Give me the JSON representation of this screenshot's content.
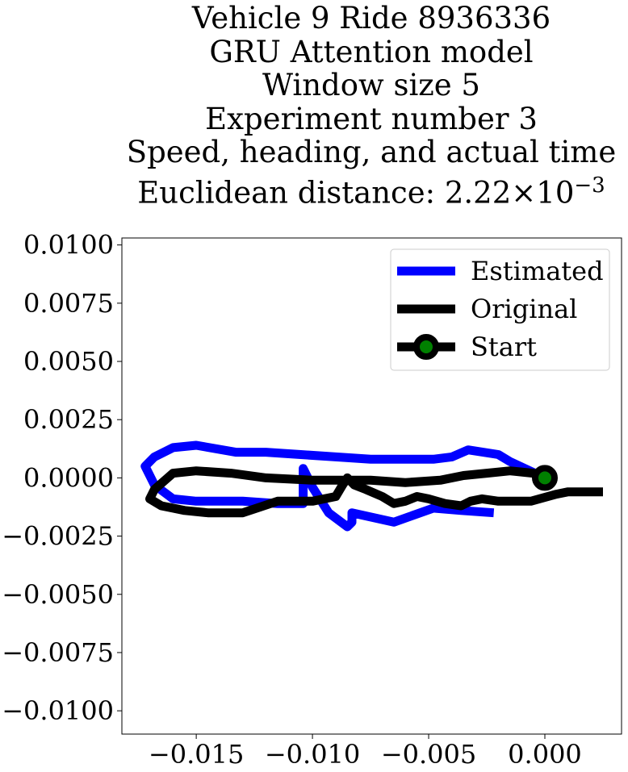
{
  "chart_data": {
    "type": "line",
    "title_lines": [
      "Vehicle 9 Ride 8936336",
      "GRU Attention model",
      "Window size 5",
      "Experiment number 3",
      "Speed, heading, and actual time"
    ],
    "title_distance_prefix": "Euclidean distance: ",
    "title_distance_mantissa": "2.22",
    "title_distance_times": "×",
    "title_distance_base": "10",
    "title_distance_exponent": "−3",
    "xlabel": "",
    "ylabel": "",
    "xlim": [
      -0.0182,
      0.0033
    ],
    "ylim": [
      -0.011,
      0.0103
    ],
    "x_ticks": [
      -0.015,
      -0.01,
      -0.005,
      0.0
    ],
    "x_tick_labels": [
      "−0.015",
      "−0.010",
      "−0.005",
      "0.000"
    ],
    "y_ticks": [
      0.01,
      0.0075,
      0.005,
      0.0025,
      0.0,
      -0.0025,
      -0.005,
      -0.0075,
      -0.01
    ],
    "y_tick_labels": [
      "0.0100",
      "0.0075",
      "0.0050",
      "0.0025",
      "0.0000",
      "−0.0025",
      "−0.0050",
      "−0.0075",
      "−0.0100"
    ],
    "grid": false,
    "legend_position": "top-right",
    "series": [
      {
        "name": "Estimated",
        "color": "#0000ff",
        "points": [
          [
            0.0,
            0.0
          ],
          [
            -0.0015,
            0.0007
          ],
          [
            -0.002,
            0.001
          ],
          [
            -0.0033,
            0.0012
          ],
          [
            -0.004,
            0.0009
          ],
          [
            -0.0048,
            0.0008
          ],
          [
            -0.006,
            0.0008
          ],
          [
            -0.0075,
            0.0008
          ],
          [
            -0.009,
            0.0009
          ],
          [
            -0.0105,
            0.001
          ],
          [
            -0.012,
            0.0011
          ],
          [
            -0.0133,
            0.0011
          ],
          [
            -0.015,
            0.0014
          ],
          [
            -0.016,
            0.0013
          ],
          [
            -0.0168,
            0.0009
          ],
          [
            -0.0172,
            0.0005
          ],
          [
            -0.0168,
            -0.0003
          ],
          [
            -0.016,
            -0.0009
          ],
          [
            -0.015,
            -0.001
          ],
          [
            -0.013,
            -0.001
          ],
          [
            -0.0115,
            -0.0011
          ],
          [
            -0.0104,
            -0.0011
          ],
          [
            -0.0104,
            0.0004
          ],
          [
            -0.01,
            -0.0004
          ],
          [
            -0.0093,
            -0.0015
          ],
          [
            -0.0085,
            -0.0021
          ],
          [
            -0.0083,
            -0.0019
          ],
          [
            -0.0083,
            -0.0015
          ],
          [
            -0.0065,
            -0.0019
          ],
          [
            -0.0048,
            -0.0013
          ],
          [
            -0.0036,
            -0.0014
          ],
          [
            -0.0022,
            -0.0015
          ]
        ]
      },
      {
        "name": "Original",
        "color": "#000000",
        "points": [
          [
            0.0025,
            -0.0006
          ],
          [
            0.001,
            -0.0006
          ],
          [
            0.0005,
            -0.0007
          ],
          [
            -0.0006,
            -0.001
          ],
          [
            -0.002,
            -0.001
          ],
          [
            -0.0027,
            -0.0009
          ],
          [
            -0.0032,
            -0.001
          ],
          [
            -0.0036,
            -0.0012
          ],
          [
            -0.0043,
            -0.0011
          ],
          [
            -0.005,
            -0.0009
          ],
          [
            -0.0055,
            -0.0008
          ],
          [
            -0.006,
            -0.001
          ],
          [
            -0.0065,
            -0.0011
          ],
          [
            -0.007,
            -0.0008
          ],
          [
            -0.0077,
            -0.0005
          ],
          [
            -0.0082,
            -0.0003
          ],
          [
            -0.0085,
            0.0
          ],
          [
            -0.0087,
            -0.0003
          ],
          [
            -0.009,
            -0.0008
          ],
          [
            -0.01,
            -0.001
          ],
          [
            -0.0115,
            -0.001
          ],
          [
            -0.013,
            -0.0015
          ],
          [
            -0.0145,
            -0.0015
          ],
          [
            -0.0155,
            -0.0014
          ],
          [
            -0.0165,
            -0.0012
          ],
          [
            -0.017,
            -0.0009
          ],
          [
            -0.0168,
            -0.0005
          ],
          [
            -0.016,
            0.0002
          ],
          [
            -0.015,
            0.0003
          ],
          [
            -0.0135,
            0.0002
          ],
          [
            -0.012,
            0.0
          ],
          [
            -0.01,
            -0.0001
          ],
          [
            -0.0075,
            -0.0001
          ],
          [
            -0.006,
            -0.0002
          ],
          [
            -0.0045,
            -0.0001
          ],
          [
            -0.0035,
            0.0001
          ],
          [
            -0.0025,
            0.0002
          ],
          [
            -0.0015,
            0.0003
          ],
          [
            -0.0005,
            0.0002
          ],
          [
            0.0,
            0.0001
          ]
        ]
      },
      {
        "name": "Start",
        "color": "#000000",
        "marker_color": "#008000",
        "points": [
          [
            0.0,
            0.0
          ]
        ]
      }
    ]
  }
}
